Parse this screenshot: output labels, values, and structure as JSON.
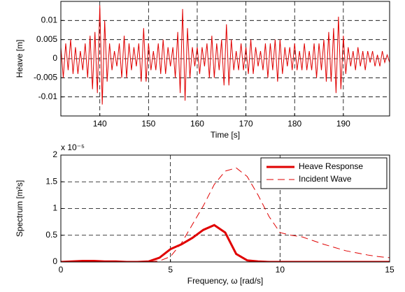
{
  "chart_data": [
    {
      "type": "line",
      "xlabel": "Time [s]",
      "ylabel": "Heave [m]",
      "xlim": [
        132,
        199.5
      ],
      "ylim": [
        -0.015,
        0.015
      ],
      "xticks": [
        140,
        150,
        160,
        170,
        180,
        190
      ],
      "yticks": [
        -0.01,
        -0.005,
        0,
        0.005,
        0.01
      ],
      "grid": true,
      "x": [
        132,
        132.5,
        133,
        133.5,
        134,
        134.5,
        135,
        135.5,
        136,
        136.5,
        137,
        137.5,
        138,
        138.5,
        139,
        139.5,
        140,
        140.5,
        141,
        141.5,
        142,
        142.5,
        143,
        143.5,
        144,
        144.5,
        145,
        145.5,
        146,
        146.5,
        147,
        147.5,
        148,
        148.5,
        149,
        149.5,
        150,
        150.5,
        151,
        151.5,
        152,
        152.5,
        153,
        153.5,
        154,
        154.5,
        155,
        155.5,
        156,
        156.5,
        157,
        157.5,
        158,
        158.5,
        159,
        159.5,
        160,
        160.5,
        161,
        161.5,
        162,
        162.5,
        163,
        163.5,
        164,
        164.5,
        165,
        165.5,
        166,
        166.5,
        167,
        167.5,
        168,
        168.5,
        169,
        169.5,
        170,
        170.5,
        171,
        171.5,
        172,
        172.5,
        173,
        173.5,
        174,
        174.5,
        175,
        175.5,
        176,
        176.5,
        177,
        177.5,
        178,
        178.5,
        179,
        179.5,
        180,
        180.5,
        181,
        181.5,
        182,
        182.5,
        183,
        183.5,
        184,
        184.5,
        185,
        185.5,
        186,
        186.5,
        187,
        187.5,
        188,
        188.5,
        189,
        189.5,
        190,
        190.5,
        191,
        191.5,
        192,
        192.5,
        193,
        193.5,
        194,
        194.5,
        195,
        195.5,
        196,
        196.5,
        197,
        197.5,
        198,
        198.5,
        199,
        199.5
      ],
      "series": [
        {
          "color": "#e00000",
          "width": 1,
          "style": "solid",
          "values": [
            0.003,
            -0.005,
            0.004,
            -0.003,
            0.005,
            -0.004,
            0.003,
            -0.004,
            0.002,
            -0.003,
            0.004,
            -0.005,
            0.006,
            -0.008,
            0.007,
            -0.009,
            0.014,
            -0.012,
            0.01,
            -0.006,
            0.004,
            -0.003,
            0.002,
            -0.002,
            0.004,
            -0.005,
            0.006,
            -0.005,
            0.004,
            -0.003,
            0.003,
            -0.002,
            0.004,
            -0.006,
            0.008,
            -0.006,
            0.004,
            -0.003,
            0.002,
            -0.003,
            0.004,
            -0.004,
            0.005,
            -0.004,
            0.003,
            -0.002,
            0.003,
            -0.005,
            0.007,
            -0.009,
            0.013,
            -0.011,
            0.008,
            -0.005,
            0.003,
            -0.002,
            0.003,
            -0.004,
            0.003,
            -0.002,
            0.004,
            -0.005,
            0.006,
            -0.005,
            0.004,
            -0.003,
            0.005,
            -0.007,
            0.009,
            -0.007,
            0.005,
            -0.003,
            0.002,
            -0.003,
            0.004,
            -0.003,
            0.003,
            -0.004,
            0.005,
            -0.004,
            0.003,
            -0.002,
            0.002,
            -0.003,
            0.004,
            -0.005,
            0.004,
            -0.003,
            0.005,
            -0.006,
            0.005,
            -0.004,
            0.003,
            -0.002,
            0.003,
            -0.003,
            0.004,
            -0.003,
            0.002,
            -0.003,
            0.004,
            -0.003,
            0.002,
            -0.003,
            0.004,
            -0.005,
            0.004,
            -0.003,
            0.005,
            -0.006,
            0.007,
            -0.006,
            0.008,
            -0.009,
            0.011,
            -0.008,
            0.006,
            -0.004,
            0.003,
            -0.002,
            0.002,
            -0.003,
            0.003,
            -0.002,
            0.002,
            -0.003,
            0.002,
            -0.001,
            0.002,
            -0.002,
            0.001,
            -0.002,
            0.002,
            -0.001,
            0.001,
            -0.001
          ]
        }
      ]
    },
    {
      "type": "line",
      "xlabel": "Frequency, ω [rad/s]",
      "ylabel": "Spectrum [m²s]",
      "y_multiplier": "x 10⁻⁵",
      "xlim": [
        0,
        15
      ],
      "ylim": [
        0,
        2
      ],
      "xticks": [
        0,
        5,
        10,
        15
      ],
      "yticks": [
        0,
        0.5,
        1,
        1.5,
        2
      ],
      "grid": true,
      "legend": "top-right",
      "x": [
        0,
        0.5,
        1,
        1.5,
        2,
        2.5,
        3,
        3.5,
        4,
        4.5,
        5,
        5.5,
        6,
        6.5,
        7,
        7.5,
        8,
        8.5,
        9,
        9.5,
        10,
        10.5,
        11,
        11.5,
        12,
        12.5,
        13,
        13.5,
        14,
        14.5,
        15
      ],
      "series": [
        {
          "name": "Heave Response",
          "color": "#e00000",
          "width": 3,
          "style": "solid",
          "values": [
            0,
            0.01,
            0.02,
            0.02,
            0.01,
            0.01,
            0,
            0,
            0.01,
            0.08,
            0.24,
            0.33,
            0.45,
            0.6,
            0.69,
            0.55,
            0.15,
            0.03,
            0.01,
            0,
            0,
            0,
            0,
            0,
            0,
            0,
            0,
            0,
            0,
            0,
            0
          ]
        },
        {
          "name": "Incident Wave",
          "color": "#e00000",
          "width": 1,
          "style": "dashed",
          "values": [
            0,
            0,
            0,
            0,
            0,
            0,
            0,
            0,
            0,
            0.02,
            0.1,
            0.35,
            0.7,
            1.05,
            1.45,
            1.7,
            1.76,
            1.6,
            1.25,
            0.85,
            0.55,
            0.5,
            0.47,
            0.4,
            0.33,
            0.27,
            0.21,
            0.17,
            0.13,
            0.1,
            0.08
          ]
        }
      ]
    }
  ]
}
